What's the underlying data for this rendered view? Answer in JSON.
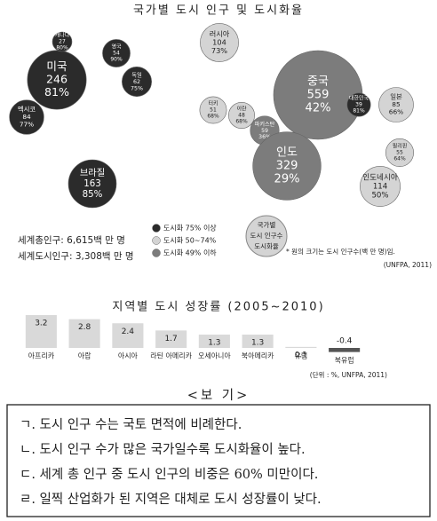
{
  "chart_data": [
    {
      "type": "bubble",
      "title": "국가별 도시 인구 및 도시화율",
      "categories": [
        "미국",
        "캐나다",
        "멕시코",
        "브라질",
        "영국",
        "독일",
        "러시아",
        "터키",
        "이란",
        "파키스탄",
        "중국",
        "인도",
        "대한민국",
        "일본",
        "필리핀",
        "인도네시아"
      ],
      "sizes": [
        246,
        27,
        84,
        163,
        54,
        62,
        104,
        51,
        48,
        59,
        559,
        329,
        39,
        85,
        55,
        114
      ],
      "values": [
        81,
        80,
        77,
        85,
        90,
        75,
        73,
        68,
        68,
        36,
        42,
        29,
        81,
        66,
        64,
        50
      ],
      "value_labels": [
        "81%",
        "80%",
        "77%",
        "85%",
        "90%",
        "75%",
        "73%",
        "68%",
        "68%",
        "36%",
        "42%",
        "29%",
        "81%",
        "66%",
        "64%",
        "50%"
      ],
      "colors": [
        "#2b2b2b",
        "#2b2b2b",
        "#2b2b2b",
        "#2b2b2b",
        "#2b2b2b",
        "#2b2b2b",
        "#d4d4d4",
        "#d4d4d4",
        "#d4d4d4",
        "#7c7c7c",
        "#7c7c7c",
        "#7c7c7c",
        "#2b2b2b",
        "#d4d4d4",
        "#d4d4d4",
        "#d4d4d4"
      ],
      "legend": [
        {
          "label": "도시화 75% 이상",
          "color": "#2b2b2b"
        },
        {
          "label": "도시화 50~74%",
          "color": "#d4d4d4"
        },
        {
          "label": "도시화 49% 이하",
          "color": "#7c7c7c"
        }
      ],
      "annotations": [
        "세계총인구: 6,615백 만 명",
        "세계도시인구: 3,308백 만 명"
      ],
      "size_legend": [
        "국가별",
        "도시 인구수",
        "도시화율"
      ],
      "note": "* 원의 크기는 도시 인구수(백 만 명)임.",
      "source": "(UNFPA, 2011)"
    },
    {
      "type": "bar",
      "title": "지역별 도시 성장률 (2005~2010)",
      "categories": [
        "아프리카",
        "아랍",
        "아시아",
        "라틴 아메리카",
        "오세아니아",
        "북아메리카",
        "유럽",
        "북유럽"
      ],
      "values": [
        3.2,
        2.8,
        2.4,
        1.7,
        1.3,
        1.3,
        0.1,
        -0.4
      ],
      "color": "#d9d9d9",
      "source": "(단위 : %, UNFPA, 2011)"
    }
  ],
  "document": {
    "title": "<보 기>",
    "items": [
      "ㄱ. 도시 인구 수는 국토 면적에 비례한다.",
      "ㄴ. 도시 인구 수가 많은 국가일수록 도시화율이 높다.",
      "ㄷ. 세계 총 인구 중 도시 인구의 비중은 60% 미만이다.",
      "ㄹ. 일찍 산업화가 된 지역은 대체로 도시 성장률이 낮다."
    ]
  }
}
